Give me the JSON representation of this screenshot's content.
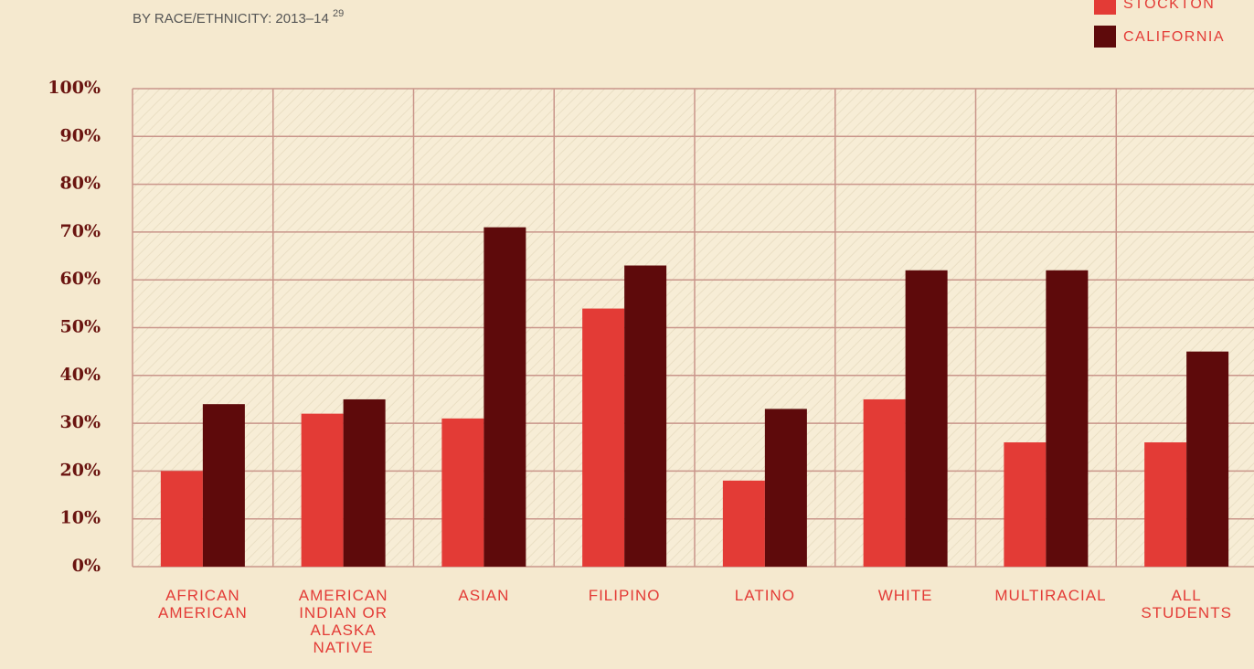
{
  "chart_data": {
    "type": "bar",
    "subtitle": "BY RACE/ETHNICITY: 2013–14",
    "subtitle_note": "29",
    "categories": [
      "AFRICAN AMERICAN",
      "AMERICAN INDIAN OR ALASKA NATIVE",
      "ASIAN",
      "FILIPINO",
      "LATINO",
      "WHITE",
      "MULTIRACIAL",
      "ALL STUDENTS"
    ],
    "series": [
      {
        "name": "STOCKTON",
        "color": "#e33b36",
        "values": [
          20,
          32,
          31,
          54,
          18,
          35,
          26,
          26
        ]
      },
      {
        "name": "CALIFORNIA",
        "color": "#5e0a0b",
        "values": [
          34,
          35,
          71,
          63,
          33,
          62,
          62,
          45
        ]
      }
    ],
    "ylim": [
      0,
      100
    ],
    "yticks": [
      {
        "value": 0,
        "label": "0%"
      },
      {
        "value": 10,
        "label": "10%"
      },
      {
        "value": 20,
        "label": "20%"
      },
      {
        "value": 30,
        "label": "30%"
      },
      {
        "value": 40,
        "label": "40%"
      },
      {
        "value": 50,
        "label": "50%"
      },
      {
        "value": 60,
        "label": "60%"
      },
      {
        "value": 70,
        "label": "70%"
      },
      {
        "value": 80,
        "label": "80%"
      },
      {
        "value": 90,
        "label": "90%"
      },
      {
        "value": 100,
        "label": "100%"
      }
    ],
    "grid": true,
    "legend": "top-right"
  }
}
